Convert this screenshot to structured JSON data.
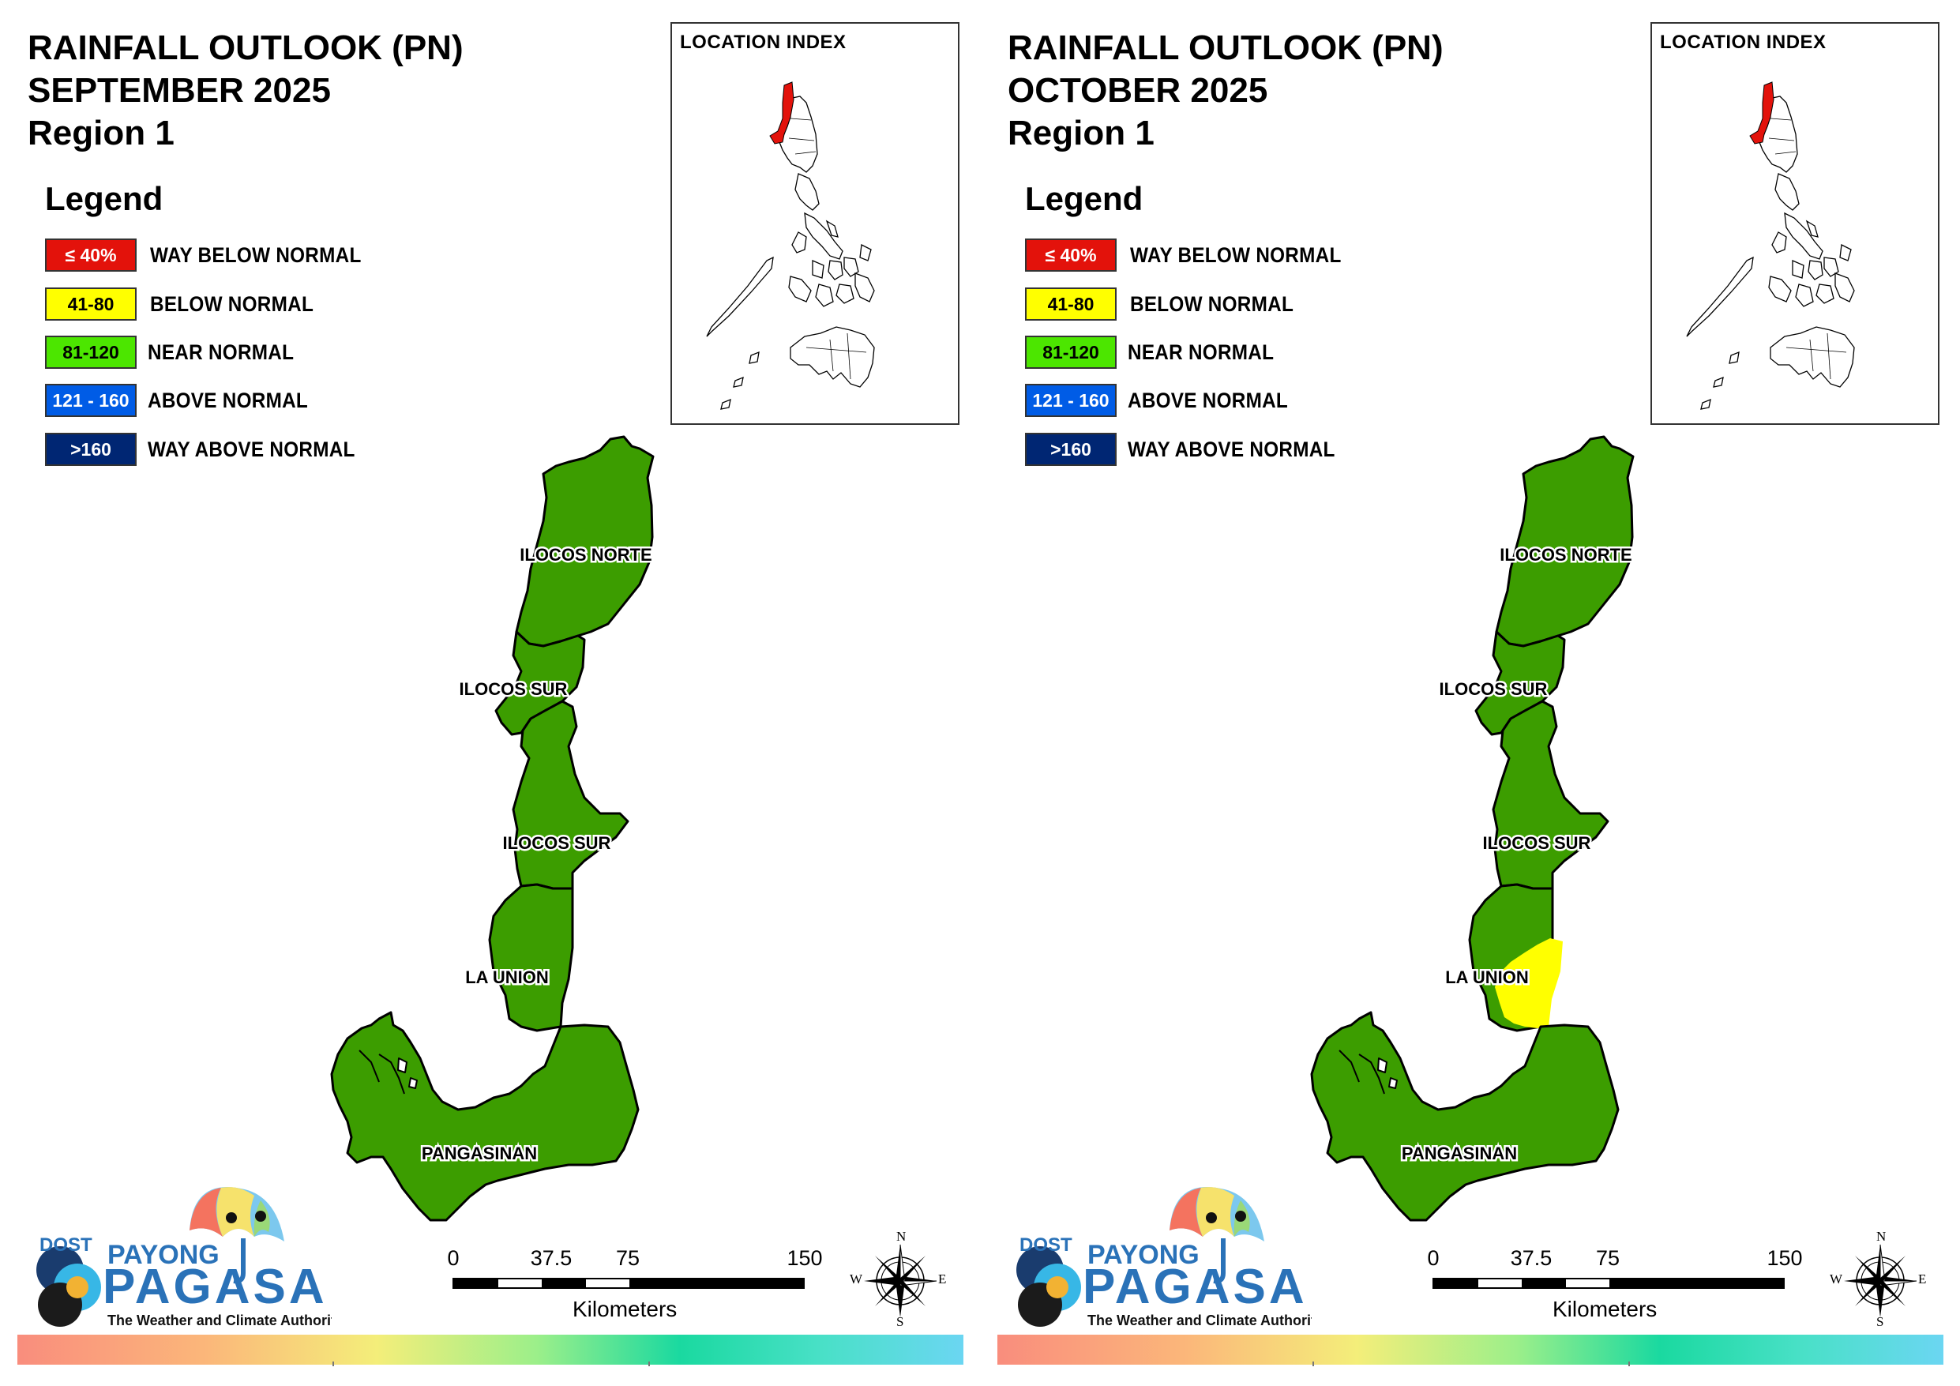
{
  "panels": [
    {
      "title_lines": [
        "RAINFALL OUTLOOK (PN)",
        "SEPTEMBER 2025",
        "Region 1"
      ],
      "la_union_yellow": false
    },
    {
      "title_lines": [
        "RAINFALL OUTLOOK (PN)",
        "OCTOBER 2025",
        "Region 1"
      ],
      "la_union_yellow": true
    }
  ],
  "legend": {
    "title": "Legend",
    "items": [
      {
        "range": "≤ 40%",
        "label": "WAY BELOW NORMAL",
        "color": "#e3120b",
        "text_color": "#ffffff"
      },
      {
        "range": "41-80",
        "label": "BELOW NORMAL",
        "color": "#ffff00",
        "text_color": "#000000"
      },
      {
        "range": "81-120",
        "label": "NEAR NORMAL",
        "color": "#4ce600",
        "text_color": "#000000"
      },
      {
        "range": "121 - 160",
        "label": "ABOVE NORMAL",
        "color": "#005ce6",
        "text_color": "#ffffff"
      },
      {
        "range": ">160",
        "label": "WAY ABOVE NORMAL",
        "color": "#002673",
        "text_color": "#ffffff"
      }
    ]
  },
  "inset": {
    "title": "LOCATION INDEX",
    "highlight_color": "#e3120b"
  },
  "provinces": {
    "ilocos_norte": "ILOCOS NORTE",
    "ilocos_sur_north": "ILOCOS SUR",
    "ilocos_sur_south": "ILOCOS SUR",
    "la_union": "LA UNION",
    "pangasinan": "PANGASINAN"
  },
  "map_colors": {
    "near_normal": "#3c9d00",
    "below_normal": "#ffff00",
    "border": "#000000"
  },
  "scale_bar": {
    "ticks": [
      "0",
      "37.5",
      "75",
      "150"
    ],
    "unit": "Kilometers"
  },
  "compass": {
    "n": "N",
    "s": "S",
    "e": "E",
    "w": "W"
  },
  "logo": {
    "dost": "DOST",
    "payong": "PAYONG",
    "pagasa": "PAGASA",
    "tagline": "The Weather and Climate Authority"
  }
}
